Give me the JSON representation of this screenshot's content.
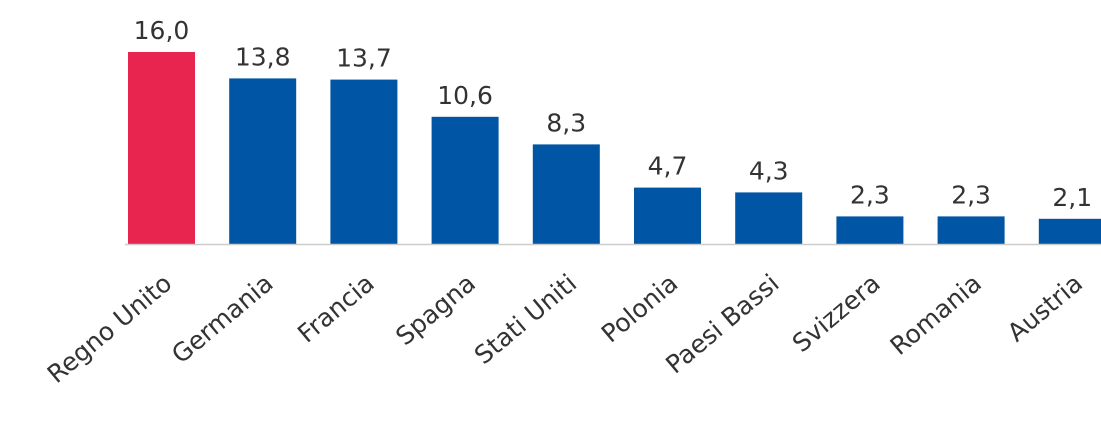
{
  "chart_data": {
    "type": "bar",
    "categories": [
      "Regno Unito",
      "Germania",
      "Francia",
      "Spagna",
      "Stati Uniti",
      "Polonia",
      "Paesi Bassi",
      "Svizzera",
      "Romania",
      "Austria"
    ],
    "values": [
      16.0,
      13.8,
      13.7,
      10.6,
      8.3,
      4.7,
      4.3,
      2.3,
      2.3,
      2.1
    ],
    "value_labels": [
      "16,0",
      "13,8",
      "13,7",
      "10,6",
      "8,3",
      "4,7",
      "4,3",
      "2,3",
      "2,3",
      "2,1"
    ],
    "title": "",
    "xlabel": "",
    "ylabel": "",
    "ylim": [
      0,
      16.0
    ],
    "grid": false,
    "legend": "none",
    "colors": {
      "highlight": "#E8254F",
      "default": "#0055A4",
      "axis": "#cccccc",
      "text": "#333333"
    },
    "highlight_index": 0
  }
}
